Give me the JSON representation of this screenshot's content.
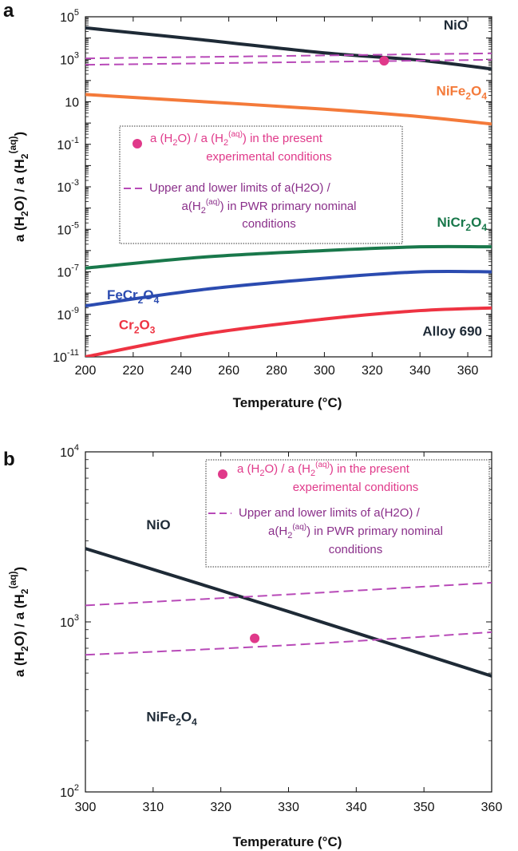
{
  "colors": {
    "NiO": "#1e2a36",
    "NiFe2O4": "#f47a3a",
    "NiCr2O4": "#19784b",
    "FeCr2O4": "#2b4bb0",
    "Cr2O3": "#ee3342",
    "point": "#e0398a",
    "limits": "#b84ab8",
    "legend_point_text": "#e0398a",
    "legend_limits_text": "#8a2f8a"
  },
  "chart_data": [
    {
      "panel": "a",
      "type": "line",
      "y_scale": "log",
      "xlim": [
        200,
        370
      ],
      "ylim": [
        1e-11,
        100000.0
      ],
      "x_ticks": [
        200,
        220,
        240,
        260,
        280,
        300,
        320,
        340,
        360
      ],
      "y_ticks": [
        {
          "value": 100000.0,
          "base": "10",
          "exp": "5"
        },
        {
          "value": 1000.0,
          "base": "10",
          "exp": "3"
        },
        {
          "value": 10,
          "base": "10",
          "exp": ""
        },
        {
          "value": 0.1,
          "base": "10",
          "exp": "-1"
        },
        {
          "value": 0.001,
          "base": "10",
          "exp": "-3"
        },
        {
          "value": 1e-05,
          "base": "10",
          "exp": "-5"
        },
        {
          "value": 1e-07,
          "base": "10",
          "exp": "-7"
        },
        {
          "value": 1e-09,
          "base": "10",
          "exp": "-9"
        },
        {
          "value": 1e-11,
          "base": "10",
          "exp": "-11"
        }
      ],
      "xlabel": "Temperature (°C)",
      "ylabel": {
        "a": "a (H",
        "sub1": "2",
        "b": "O) / a (H",
        "sub2": "2",
        "sup": "(aq)",
        "c": ")"
      },
      "series": [
        {
          "name": "NiO",
          "style": "solid",
          "x": [
            200,
            250,
            300,
            340,
            370
          ],
          "y": [
            30000,
            8000,
            2000,
            900,
            350
          ]
        },
        {
          "name": "NiFe2O4",
          "style": "solid",
          "x": [
            200,
            250,
            300,
            340,
            370
          ],
          "y": [
            22,
            10,
            4.5,
            2,
            0.9
          ]
        },
        {
          "name": "NiCr2O4",
          "style": "solid",
          "x": [
            200,
            250,
            300,
            340,
            370
          ],
          "y": [
            1.5e-07,
            5e-07,
            1e-06,
            1.5e-06,
            1.5e-06
          ]
        },
        {
          "name": "FeCr2O4",
          "style": "solid",
          "x": [
            200,
            250,
            300,
            340,
            370
          ],
          "y": [
            2.5e-09,
            1.5e-08,
            5e-08,
            1e-07,
            1e-07
          ]
        },
        {
          "name": "Cr2O3",
          "style": "solid",
          "x": [
            200,
            250,
            300,
            340,
            370
          ],
          "y": [
            1e-11,
            1.2e-10,
            6e-10,
            1.5e-09,
            2e-09
          ]
        },
        {
          "name": "upper limit",
          "style": "dashed",
          "x": [
            200,
            370
          ],
          "y": [
            1100,
            1900
          ]
        },
        {
          "name": "lower limit",
          "style": "dashed",
          "x": [
            200,
            370
          ],
          "y": [
            550,
            950
          ]
        }
      ],
      "points": [
        {
          "x": 325,
          "y": 850
        }
      ],
      "curve_labels": [
        {
          "key": "NiO",
          "main": "NiO",
          "sub": "",
          "tail": "",
          "x": 360,
          "y": 25000,
          "anchor": "end"
        },
        {
          "key": "NiFe2O4",
          "main": "NiFe",
          "sub": "2",
          "tail": "O",
          "sub2": "4",
          "x": 368,
          "y": 20,
          "anchor": "end"
        },
        {
          "key": "NiCr2O4",
          "main": "NiCr",
          "sub": "2",
          "tail": "O",
          "sub2": "4",
          "x": 368,
          "y": 1.3e-05,
          "anchor": "end"
        },
        {
          "key": "FeCr2O4",
          "main": "FeCr",
          "sub": "2",
          "tail": "O",
          "sub2": "4",
          "x": 209,
          "y": 5e-09,
          "anchor": "start"
        },
        {
          "key": "Cr2O3",
          "main": "Cr",
          "sub": "2",
          "tail": "O",
          "sub2": "3",
          "x": 214,
          "y": 2e-10,
          "anchor": "start"
        },
        {
          "key": "NiO",
          "main": "Alloy 690",
          "sub": "",
          "tail": "",
          "x": 366,
          "y": 1e-10,
          "anchor": "end"
        }
      ],
      "legend": {
        "point": {
          "line1": {
            "a": "a (H",
            "s1": "2",
            "b": "O) / a (H",
            "s2": "2",
            "sup": "(aq)",
            "c": ") in the present"
          },
          "line2": "experimental conditions"
        },
        "limits": {
          "line1": "Upper and lower limits of  a(H2O) /",
          "line2": {
            "a": "a(H",
            "s1": "2",
            "sup": "(aq)",
            "c": ") in PWR primary nominal"
          },
          "line3": "conditions"
        }
      }
    },
    {
      "panel": "b",
      "type": "line",
      "y_scale": "log",
      "xlim": [
        300,
        360
      ],
      "ylim": [
        100,
        10000
      ],
      "x_ticks": [
        300,
        310,
        320,
        330,
        340,
        350,
        360
      ],
      "y_ticks": [
        {
          "value": 10000,
          "base": "10",
          "exp": "4"
        },
        {
          "value": 1000,
          "base": "10",
          "exp": "3"
        },
        {
          "value": 100,
          "base": "10",
          "exp": "2"
        }
      ],
      "xlabel": "Temperature (°C)",
      "ylabel": {
        "a": "a (H",
        "sub1": "2",
        "b": "O) / a (H",
        "sub2": "2",
        "sup": "(aq)",
        "c": ")"
      },
      "series": [
        {
          "name": "NiO",
          "style": "solid",
          "x": [
            300,
            330,
            360
          ],
          "y": [
            2700,
            1150,
            480
          ]
        },
        {
          "name": "upper limit",
          "style": "dashed",
          "x": [
            300,
            330,
            360
          ],
          "y": [
            1250,
            1450,
            1700
          ]
        },
        {
          "name": "lower limit",
          "style": "dashed",
          "x": [
            300,
            330,
            360
          ],
          "y": [
            640,
            730,
            870
          ]
        }
      ],
      "points": [
        {
          "x": 325,
          "y": 800
        }
      ],
      "curve_labels": [
        {
          "key": "NiO",
          "main": "NiO",
          "sub": "",
          "tail": "",
          "x": 309,
          "y": 3500,
          "anchor": "start"
        },
        {
          "key": "NiO",
          "main": "NiFe",
          "sub": "2",
          "tail": "O",
          "sub2": "4",
          "x": 309,
          "y": 260,
          "anchor": "start"
        }
      ],
      "legend": {
        "point": {
          "line1": {
            "a": "a (H",
            "s1": "2",
            "b": "O) / a (H",
            "s2": "2",
            "sup": "(aq)",
            "c": ") in the present"
          },
          "line2": "experimental conditions"
        },
        "limits": {
          "line1": "Upper and lower limits of  a(H2O) /",
          "line2": {
            "a": "a(H",
            "s1": "2",
            "sup": "(aq)",
            "c": ") in PWR primary nominal"
          },
          "line3": "conditions"
        }
      }
    }
  ]
}
